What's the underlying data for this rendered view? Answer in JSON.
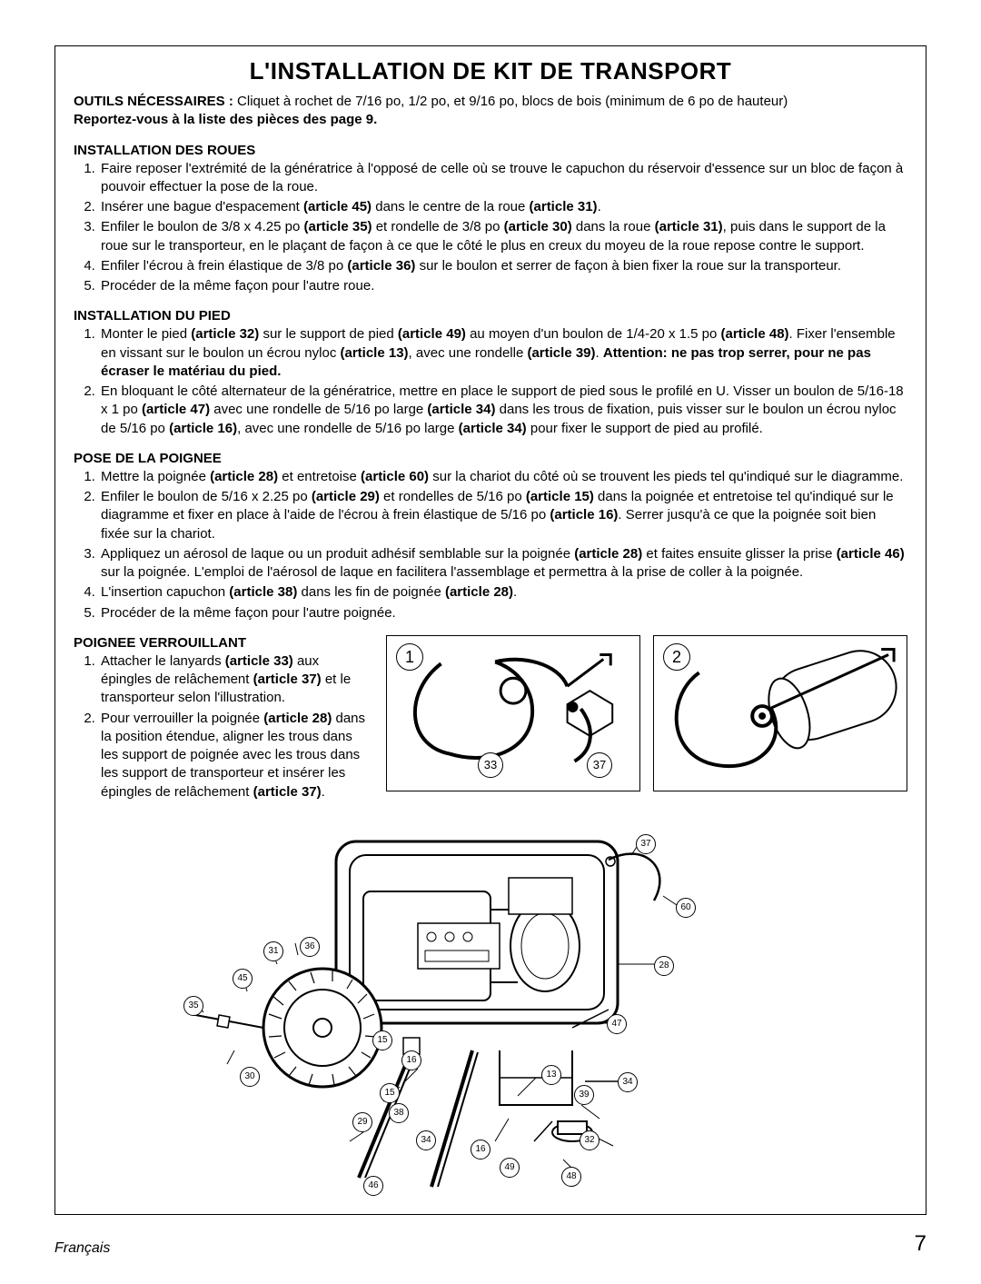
{
  "title": "L'INSTALLATION DE KIT DE TRANSPORT",
  "intro": {
    "tools_label": "OUTILS NÉCESSAIRES :",
    "tools_text": "Cliquet à rochet de 7/16 po, 1/2 po, et 9/16 po, blocs de bois (minimum de 6 po de hauteur)",
    "reportez": "Reportez-vous à la liste des pièces des page 9."
  },
  "section_wheels": {
    "heading": "INSTALLATION DES ROUES",
    "items": [
      "Faire reposer l'extrémité de la génératrice à l'opposé de celle où se trouve le capuchon du réservoir d'essence sur un bloc de façon à pouvoir effectuer la pose de la roue.",
      "Insérer une bague d'espacement <b>(article 45)</b> dans le centre de la roue <b>(article 31)</b>.",
      "Enfiler le boulon de 3/8 x 4.25 po <b>(article 35)</b> et rondelle de 3/8 po <b>(article 30)</b> dans la roue <b>(article 31)</b>, puis dans le support de la roue sur le transporteur, en le plaçant de façon à ce que le côté le plus en creux du moyeu de la roue repose contre le support.",
      "Enfiler l'écrou à frein élastique de 3/8 po <b>(article 36)</b> sur le boulon et serrer de façon à bien fixer la roue sur la transporteur.",
      "Procéder de la même façon pour l'autre roue."
    ]
  },
  "section_foot": {
    "heading": "INSTALLATION DU PIED",
    "items": [
      "Monter le pied <b>(article 32)</b> sur le support de pied <b>(article 49)</b> au moyen d'un boulon de 1/4-20 x 1.5 po <b>(article 48)</b>. Fixer l'ensemble en vissant sur le boulon un écrou nyloc <b>(article 13)</b>, avec une rondelle <b>(article 39)</b>. <b>Attention: ne pas trop serrer, pour ne pas écraser le matériau du pied.</b>",
      "En bloquant le côté alternateur de la génératrice, mettre en place le support de pied sous le profilé en U. Visser un boulon de 5/16-18 x 1 po <b>(article 47)</b> avec une rondelle de 5/16 po large <b>(article 34)</b> dans les trous de fixation, puis visser sur le boulon un écrou nyloc de 5/16 po <b>(article 16)</b>, avec une rondelle de 5/16 po large <b>(article 34)</b> pour fixer le support de pied au profilé."
    ]
  },
  "section_handle": {
    "heading": "POSE DE LA POIGNEE",
    "items": [
      "Mettre la poignée <b>(article 28)</b> et entretoise <b>(article 60)</b> sur la chariot du côté où se trouvent les pieds tel qu'indiqué sur le diagramme.",
      "Enfiler le boulon de 5/16 x 2.25 po <b>(article 29)</b> et rondelles de 5/16 po <b>(article 15)</b> dans la poignée et entretoise tel qu'indiqué sur le diagramme et fixer en place à l'aide de l'écrou à frein élastique de 5/16 po <b>(article 16)</b>. Serrer jusqu'à ce que la poignée soit bien fixée sur la chariot.",
      "Appliquez un aérosol de laque ou un produit adhésif semblable sur la poignée <b>(article 28)</b> et faites ensuite glisser la prise <b>(article 46)</b> sur la poignée. L'emploi de l'aérosol de laque en facilitera l'assemblage et permettra à la prise de coller à la poignée.",
      "L'insertion capuchon <b>(article 38)</b> dans les fin de poignée <b>(article 28)</b>.",
      "Procéder de la même façon pour l'autre poignée."
    ]
  },
  "section_lock": {
    "heading": "POIGNEE VERROUILLANT",
    "items": [
      "Attacher le lanyards <b>(article 33)</b> aux épingles de relâchement <b>(article 37)</b> et le transporteur selon l'illustration.",
      "Pour verrouiller la poignée <b>(article 28)</b> dans la position étendue, aligner les trous dans les support de poignée avec les trous dans les support de transporteur et insérer les épingles de relâchement <b>(article 37)</b>."
    ]
  },
  "diagram1": {
    "step": "1",
    "label33": "33",
    "label37": "37"
  },
  "diagram2": {
    "step": "2"
  },
  "big_diagram_labels": [
    "37",
    "60",
    "28",
    "47",
    "34",
    "13",
    "39",
    "32",
    "48",
    "49",
    "16",
    "34b",
    "38",
    "29",
    "15",
    "16b",
    "15b",
    "30",
    "35",
    "45",
    "31",
    "36"
  ],
  "big_labels": {
    "l37": "37",
    "l60": "60",
    "l28": "28",
    "l47": "47",
    "l34": "34",
    "l13": "13",
    "l39": "39",
    "l32": "32",
    "l48": "48",
    "l49": "49",
    "l16": "16",
    "l34b": "34",
    "l38": "38",
    "l29": "29",
    "l15": "15",
    "l16b": "16",
    "l15b": "15",
    "l30": "30",
    "l35": "35",
    "l45": "45",
    "l31": "31",
    "l36": "36",
    "l46": "46"
  },
  "footer": {
    "lang": "Français",
    "page": "7"
  },
  "colors": {
    "text": "#000000",
    "bg": "#ffffff",
    "border": "#000000"
  }
}
